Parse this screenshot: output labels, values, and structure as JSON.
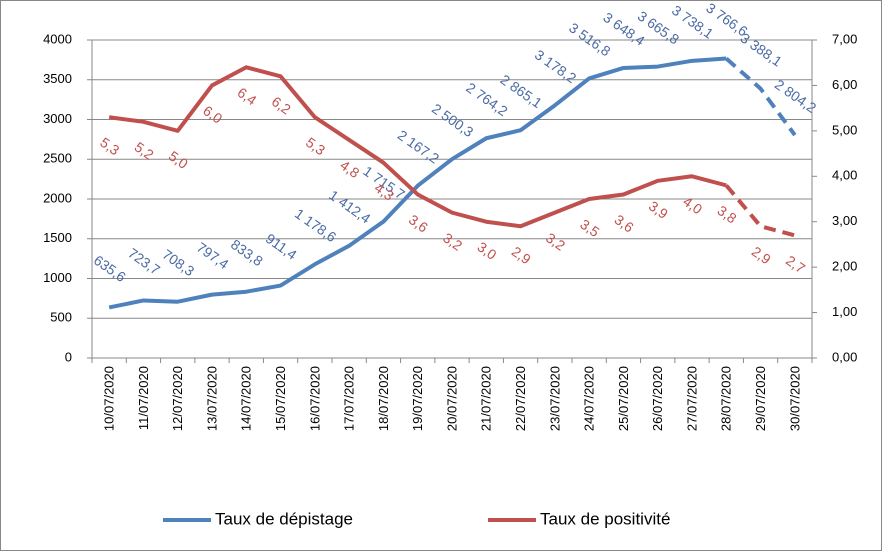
{
  "chart_data": {
    "type": "line",
    "categories": [
      "10/07/2020",
      "11/07/2020",
      "12/07/2020",
      "13/07/2020",
      "14/07/2020",
      "15/07/2020",
      "16/07/2020",
      "17/07/2020",
      "18/07/2020",
      "19/07/2020",
      "20/07/2020",
      "21/07/2020",
      "22/07/2020",
      "23/07/2020",
      "24/07/2020",
      "25/07/2020",
      "26/07/2020",
      "27/07/2020",
      "28/07/2020",
      "29/07/2020",
      "30/07/2020"
    ],
    "series": [
      {
        "name": "Taux de dépistage",
        "color": "#4f81bd",
        "label_color": "#4a6aa5",
        "axis": "y",
        "values": [
          635.6,
          723.7,
          708.3,
          797.4,
          833.8,
          911.4,
          1178.6,
          1412.4,
          1715.7,
          2167.2,
          2500.3,
          2764.2,
          2865.1,
          3178.2,
          3516.8,
          3648.4,
          3665.8,
          3738.1,
          3766.6,
          3388.1,
          2804.2
        ],
        "value_labels": [
          "635,6",
          "723,7",
          "708,3",
          "797,4",
          "833,8",
          "911,4",
          "1 178,6",
          "1 412,4",
          "1 715,7",
          "2 167,2",
          "2 500,3",
          "2 764,2",
          "2 865,1",
          "3 178,2",
          "3 516,8",
          "3 648,4",
          "3 665,8",
          "3 738,1",
          "3 766,6",
          "3 388,1",
          "2 804,2"
        ],
        "dashed_from": "28/07/2020"
      },
      {
        "name": "Taux de positivité",
        "color": "#c0504d",
        "label_color": "#c0504d",
        "axis": "y2",
        "values": [
          5.3,
          5.2,
          5.0,
          6.0,
          6.4,
          6.2,
          5.3,
          4.8,
          4.3,
          3.6,
          3.2,
          3.0,
          2.9,
          3.2,
          3.5,
          3.6,
          3.9,
          4.0,
          3.8,
          2.9,
          2.7
        ],
        "value_labels": [
          "5,3",
          "5,2",
          "5,0",
          "6,0",
          "6,4",
          "6,2",
          "5,3",
          "4,8",
          "4,3",
          "3,6",
          "3,2",
          "3,0",
          "2,9",
          "3,2",
          "3,5",
          "3,6",
          "3,9",
          "4,0",
          "3,8",
          "2,9",
          "2,7"
        ],
        "dashed_from": "28/07/2020"
      }
    ],
    "ylim": [
      0,
      4000
    ],
    "yticks": [
      0,
      500,
      1000,
      1500,
      2000,
      2500,
      3000,
      3500,
      4000
    ],
    "y2lim": [
      0,
      7
    ],
    "y2ticks": [
      {
        "value": 0,
        "label": "0,00"
      },
      {
        "value": 1,
        "label": "1,00"
      },
      {
        "value": 2,
        "label": "2,00"
      },
      {
        "value": 3,
        "label": "3,00"
      },
      {
        "value": 4,
        "label": "4,00"
      },
      {
        "value": 5,
        "label": "5,00"
      },
      {
        "value": 6,
        "label": "6,00"
      },
      {
        "value": 7,
        "label": "7,00"
      }
    ],
    "grid": true,
    "legend": "bottom"
  }
}
